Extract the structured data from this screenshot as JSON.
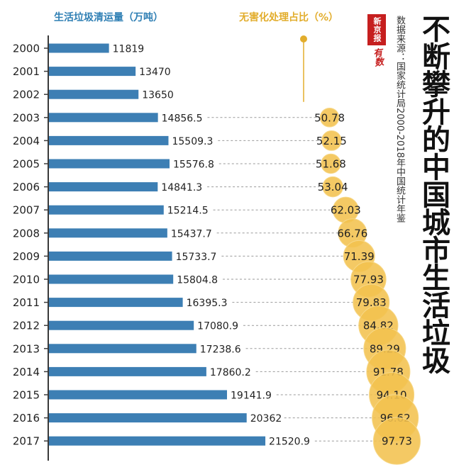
{
  "headers": {
    "left": "生活垃圾清运量（万吨）",
    "right": "无害化处理占比（%）"
  },
  "title": "不断攀升的中国城市生活垃圾",
  "source": "数据来源：国家统计局2000-2018年中国统计年鉴",
  "logo": {
    "name": "新京报",
    "sub": "有数"
  },
  "colors": {
    "bar": "#3d7fb4",
    "bubble": "#f2c14e",
    "bubble_edge": "#f7d888",
    "axis": "#3a3a3a"
  },
  "chart_data": {
    "type": "bar",
    "categories": [
      "2000",
      "2001",
      "2002",
      "2003",
      "2004",
      "2005",
      "2006",
      "2007",
      "2008",
      "2009",
      "2010",
      "2011",
      "2012",
      "2013",
      "2014",
      "2015",
      "2016",
      "2017"
    ],
    "series": [
      {
        "name": "生活垃圾清运量（万吨）",
        "values": [
          11819,
          13470,
          13650,
          14856.5,
          15509.3,
          15576.8,
          14841.3,
          15214.5,
          15437.7,
          15733.7,
          15804.8,
          16395.3,
          17080.9,
          17238.6,
          17860.2,
          19141.9,
          20362,
          21520.9
        ],
        "labels": [
          "11819",
          "13470",
          "13650",
          "14856.5",
          "15509.3",
          "15576.8",
          "14841.3",
          "15214.5",
          "15437.7",
          "15733.7",
          "15804.8",
          "16395.3",
          "17080.9",
          "17238.6",
          "17860.2",
          "19141.9",
          "20362",
          "21520.9"
        ]
      },
      {
        "name": "无害化处理占比（%）",
        "values": [
          null,
          null,
          null,
          50.78,
          52.15,
          51.68,
          53.04,
          62.03,
          66.76,
          71.39,
          77.93,
          79.83,
          84.82,
          89.29,
          91.78,
          94.1,
          96.62,
          97.73
        ],
        "labels": [
          "",
          "",
          "",
          "50.78",
          "52.15",
          "51.68",
          "53.04",
          "62.03",
          "66.76",
          "71.39",
          "77.93",
          "79.83",
          "84.82",
          "89.29",
          "91.78",
          "94.10",
          "96.62",
          "97.73"
        ]
      }
    ]
  }
}
